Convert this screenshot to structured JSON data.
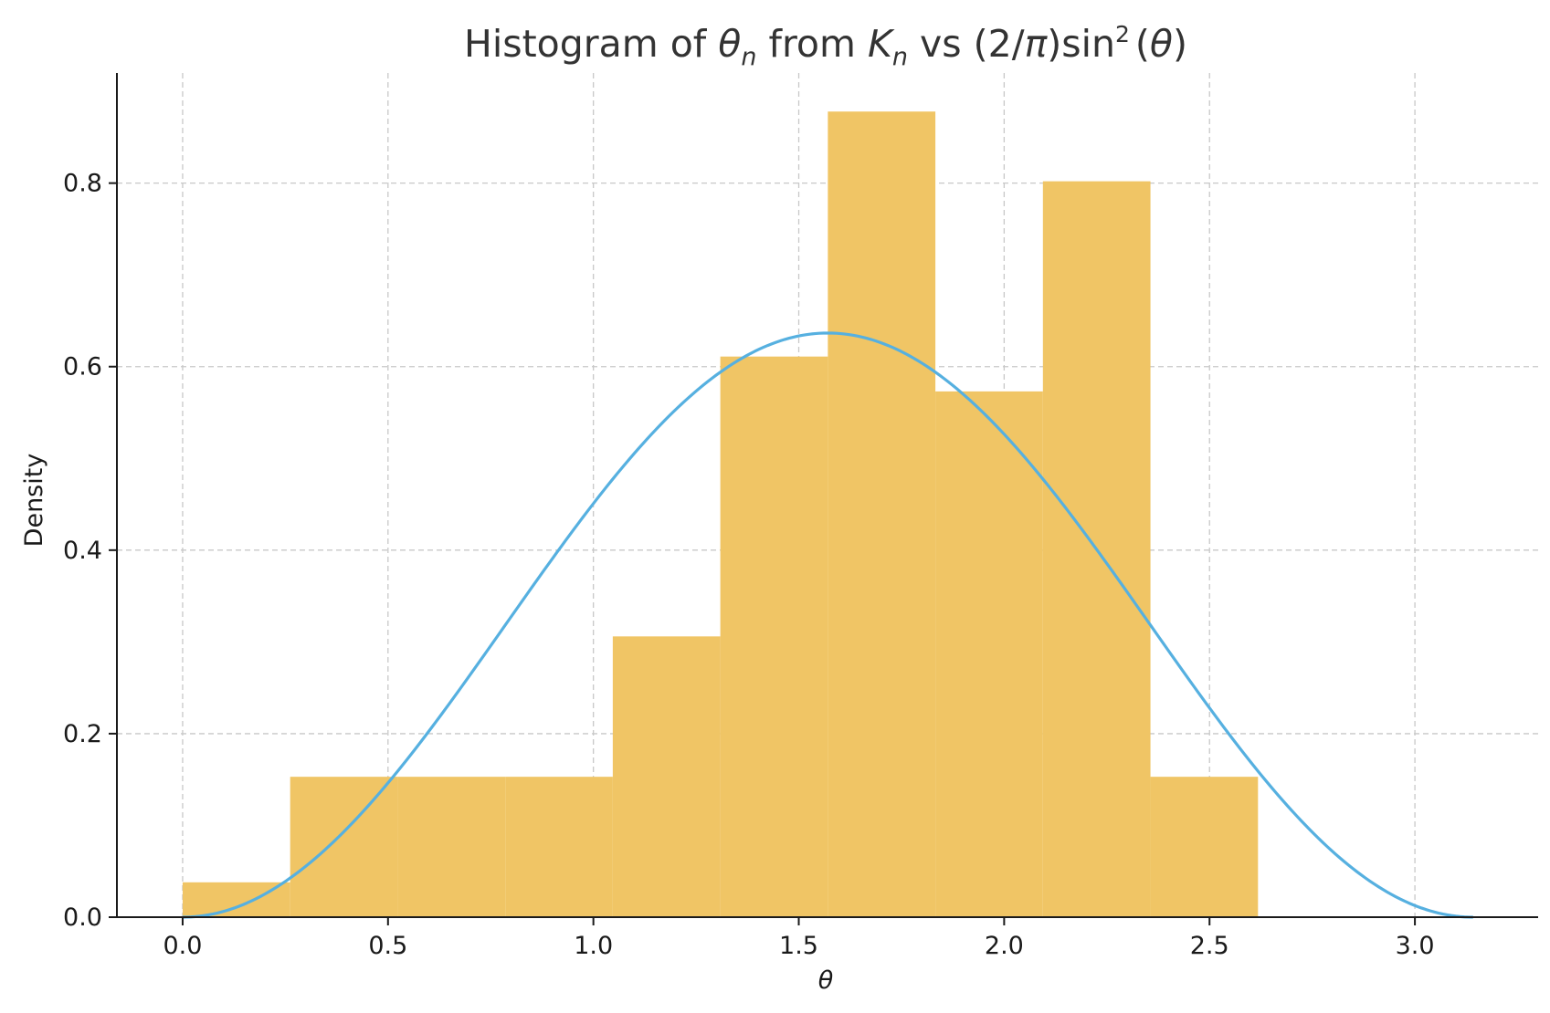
{
  "chart_data": {
    "type": "bar",
    "title": {
      "prefix": "Histogram of ",
      "theta": "θ",
      "sub_n1": "n",
      "from": " from ",
      "K": "K",
      "sub_n2": "n",
      "vs": " vs (2/",
      "pi": "π",
      "sin": ")sin",
      "sup2": "2",
      "paren_open": "(",
      "theta2": "θ",
      "paren_close": ")"
    },
    "xlabel": "θ",
    "ylabel": "Density",
    "xlim": [
      -0.16,
      3.3
    ],
    "ylim": [
      0,
      0.92
    ],
    "x_ticks": [
      0.0,
      0.5,
      1.0,
      1.5,
      2.0,
      2.5,
      3.0
    ],
    "x_tick_labels": [
      "0.0",
      "0.5",
      "1.0",
      "1.5",
      "2.0",
      "2.5",
      "3.0"
    ],
    "y_ticks": [
      0.0,
      0.2,
      0.4,
      0.6,
      0.8
    ],
    "y_tick_labels": [
      "0.0",
      "0.2",
      "0.4",
      "0.6",
      "0.8"
    ],
    "grid": true,
    "bins": [
      {
        "x0": 0.0,
        "x1": 0.2618,
        "density": 0.038
      },
      {
        "x0": 0.2618,
        "x1": 0.5236,
        "density": 0.153
      },
      {
        "x0": 0.5236,
        "x1": 0.7854,
        "density": 0.153
      },
      {
        "x0": 0.7854,
        "x1": 1.0472,
        "density": 0.153
      },
      {
        "x0": 1.0472,
        "x1": 1.309,
        "density": 0.306
      },
      {
        "x0": 1.309,
        "x1": 1.5708,
        "density": 0.611
      },
      {
        "x0": 1.5708,
        "x1": 1.8326,
        "density": 0.878
      },
      {
        "x0": 1.8326,
        "x1": 2.0944,
        "density": 0.573
      },
      {
        "x0": 2.0944,
        "x1": 2.3562,
        "density": 0.802
      },
      {
        "x0": 2.3562,
        "x1": 2.618,
        "density": 0.153
      }
    ],
    "curve": {
      "function": "(2/pi)*sin(theta)^2",
      "x_range": [
        0,
        3.14159
      ],
      "color": "#56b0e0"
    },
    "bar_color": "#f0c565"
  }
}
